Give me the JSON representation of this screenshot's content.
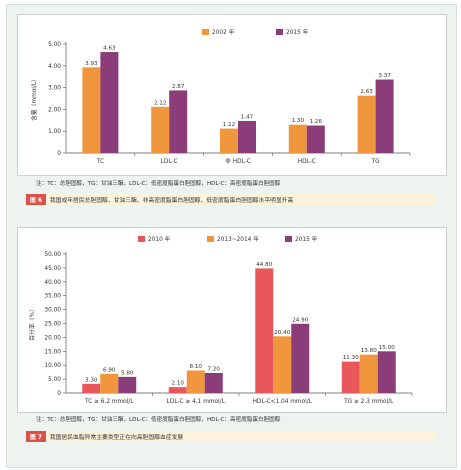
{
  "chart_data": [
    {
      "type": "bar",
      "ylabel": "含量（mmol/L）",
      "categories": [
        "TC",
        "LDL-C",
        "非 HDL-C",
        "HDL-C",
        "TG"
      ],
      "series": [
        {
          "name": "2002 年",
          "values": [
            3.93,
            2.12,
            1.12,
            1.3,
            2.63
          ]
        },
        {
          "name": "2015 年",
          "values": [
            4.63,
            2.87,
            1.47,
            1.26,
            3.37
          ]
        }
      ],
      "value_labels": [
        [
          "3.93",
          "2.12",
          "1.12",
          "1.30",
          "2.63"
        ],
        [
          "4.63",
          "2.87",
          "1.47",
          "1.26",
          "3.37"
        ]
      ],
      "ylim": [
        0,
        5
      ],
      "yticks": [
        "0",
        "1.00",
        "2.00",
        "3.00",
        "4.00",
        "5.00"
      ],
      "legend_position": "top-right",
      "grid": false,
      "colors": [
        "#f0963c",
        "#8a3d78"
      ],
      "note": "注：TC：总胆固醇，TG：甘油三酯，LDL-C：低密度脂蛋白胆固醇，HDL-C：高密度脂蛋白胆固醇",
      "fig_tag": "图 6",
      "caption": "我国成年居民总胆固醇、甘油三酯、非高密度脂蛋白胆固醇、低密度脂蛋白胆固醇水平明显升高"
    },
    {
      "type": "bar",
      "ylabel": "百分率（%）",
      "categories": [
        "TC ≥ 6.2 mmol/L",
        "LDL-C ≥ 4.1 mmol/L",
        "HDL-C<1.04 mmol/L",
        "TG ≥ 2.3 mmol/L"
      ],
      "series": [
        {
          "name": "2010 年",
          "values": [
            3.3,
            2.1,
            44.8,
            11.3
          ]
        },
        {
          "name": "2013~2014 年",
          "values": [
            6.9,
            8.1,
            20.4,
            13.8
          ]
        },
        {
          "name": "2015 年",
          "values": [
            5.8,
            7.2,
            24.9,
            15.0
          ]
        }
      ],
      "value_labels": [
        [
          "3.30",
          "2.10",
          "44.80",
          "11.30"
        ],
        [
          "6.90",
          "8.10",
          "20.40",
          "13.80"
        ],
        [
          "5.80",
          "7.20",
          "24.90",
          "15.00"
        ]
      ],
      "ylim": [
        0,
        50
      ],
      "yticks": [
        "0",
        "5.00",
        "10.00",
        "15.00",
        "20.00",
        "25.00",
        "30.00",
        "35.00",
        "40.00",
        "45.00",
        "50.00"
      ],
      "legend_position": "top",
      "grid": false,
      "colors": [
        "#e8585a",
        "#f0963c",
        "#8a3d78"
      ],
      "note": "注：TC：总胆固醇，TG：甘油三酯，LDL-C：低密度脂蛋白胆固醇，HDL-C：高密度脂蛋白胆固醇",
      "fig_tag": "图 7",
      "caption": "我国居民血脂异常主要类型正在向高胆固醇血症发展"
    }
  ]
}
